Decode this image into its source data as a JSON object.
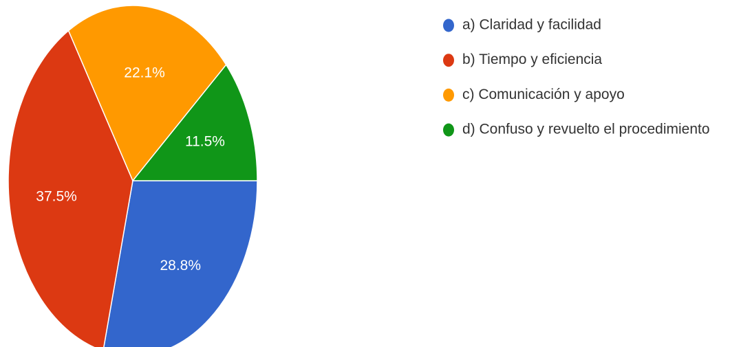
{
  "chart_data": {
    "type": "pie",
    "categories": [
      "a) Claridad y facilidad",
      "b) Tiempo y eficiencia",
      "c) Comunicación y apoyo",
      "d) Confuso y revuelto el procedimiento"
    ],
    "values": [
      28.8,
      37.5,
      22.1,
      11.5
    ],
    "value_labels": [
      "28.8%",
      "37.5%",
      "22.1%",
      "11.5%"
    ],
    "colors": [
      "#3366cc",
      "#dc3912",
      "#ff9900",
      "#109618"
    ],
    "legend": "right"
  }
}
